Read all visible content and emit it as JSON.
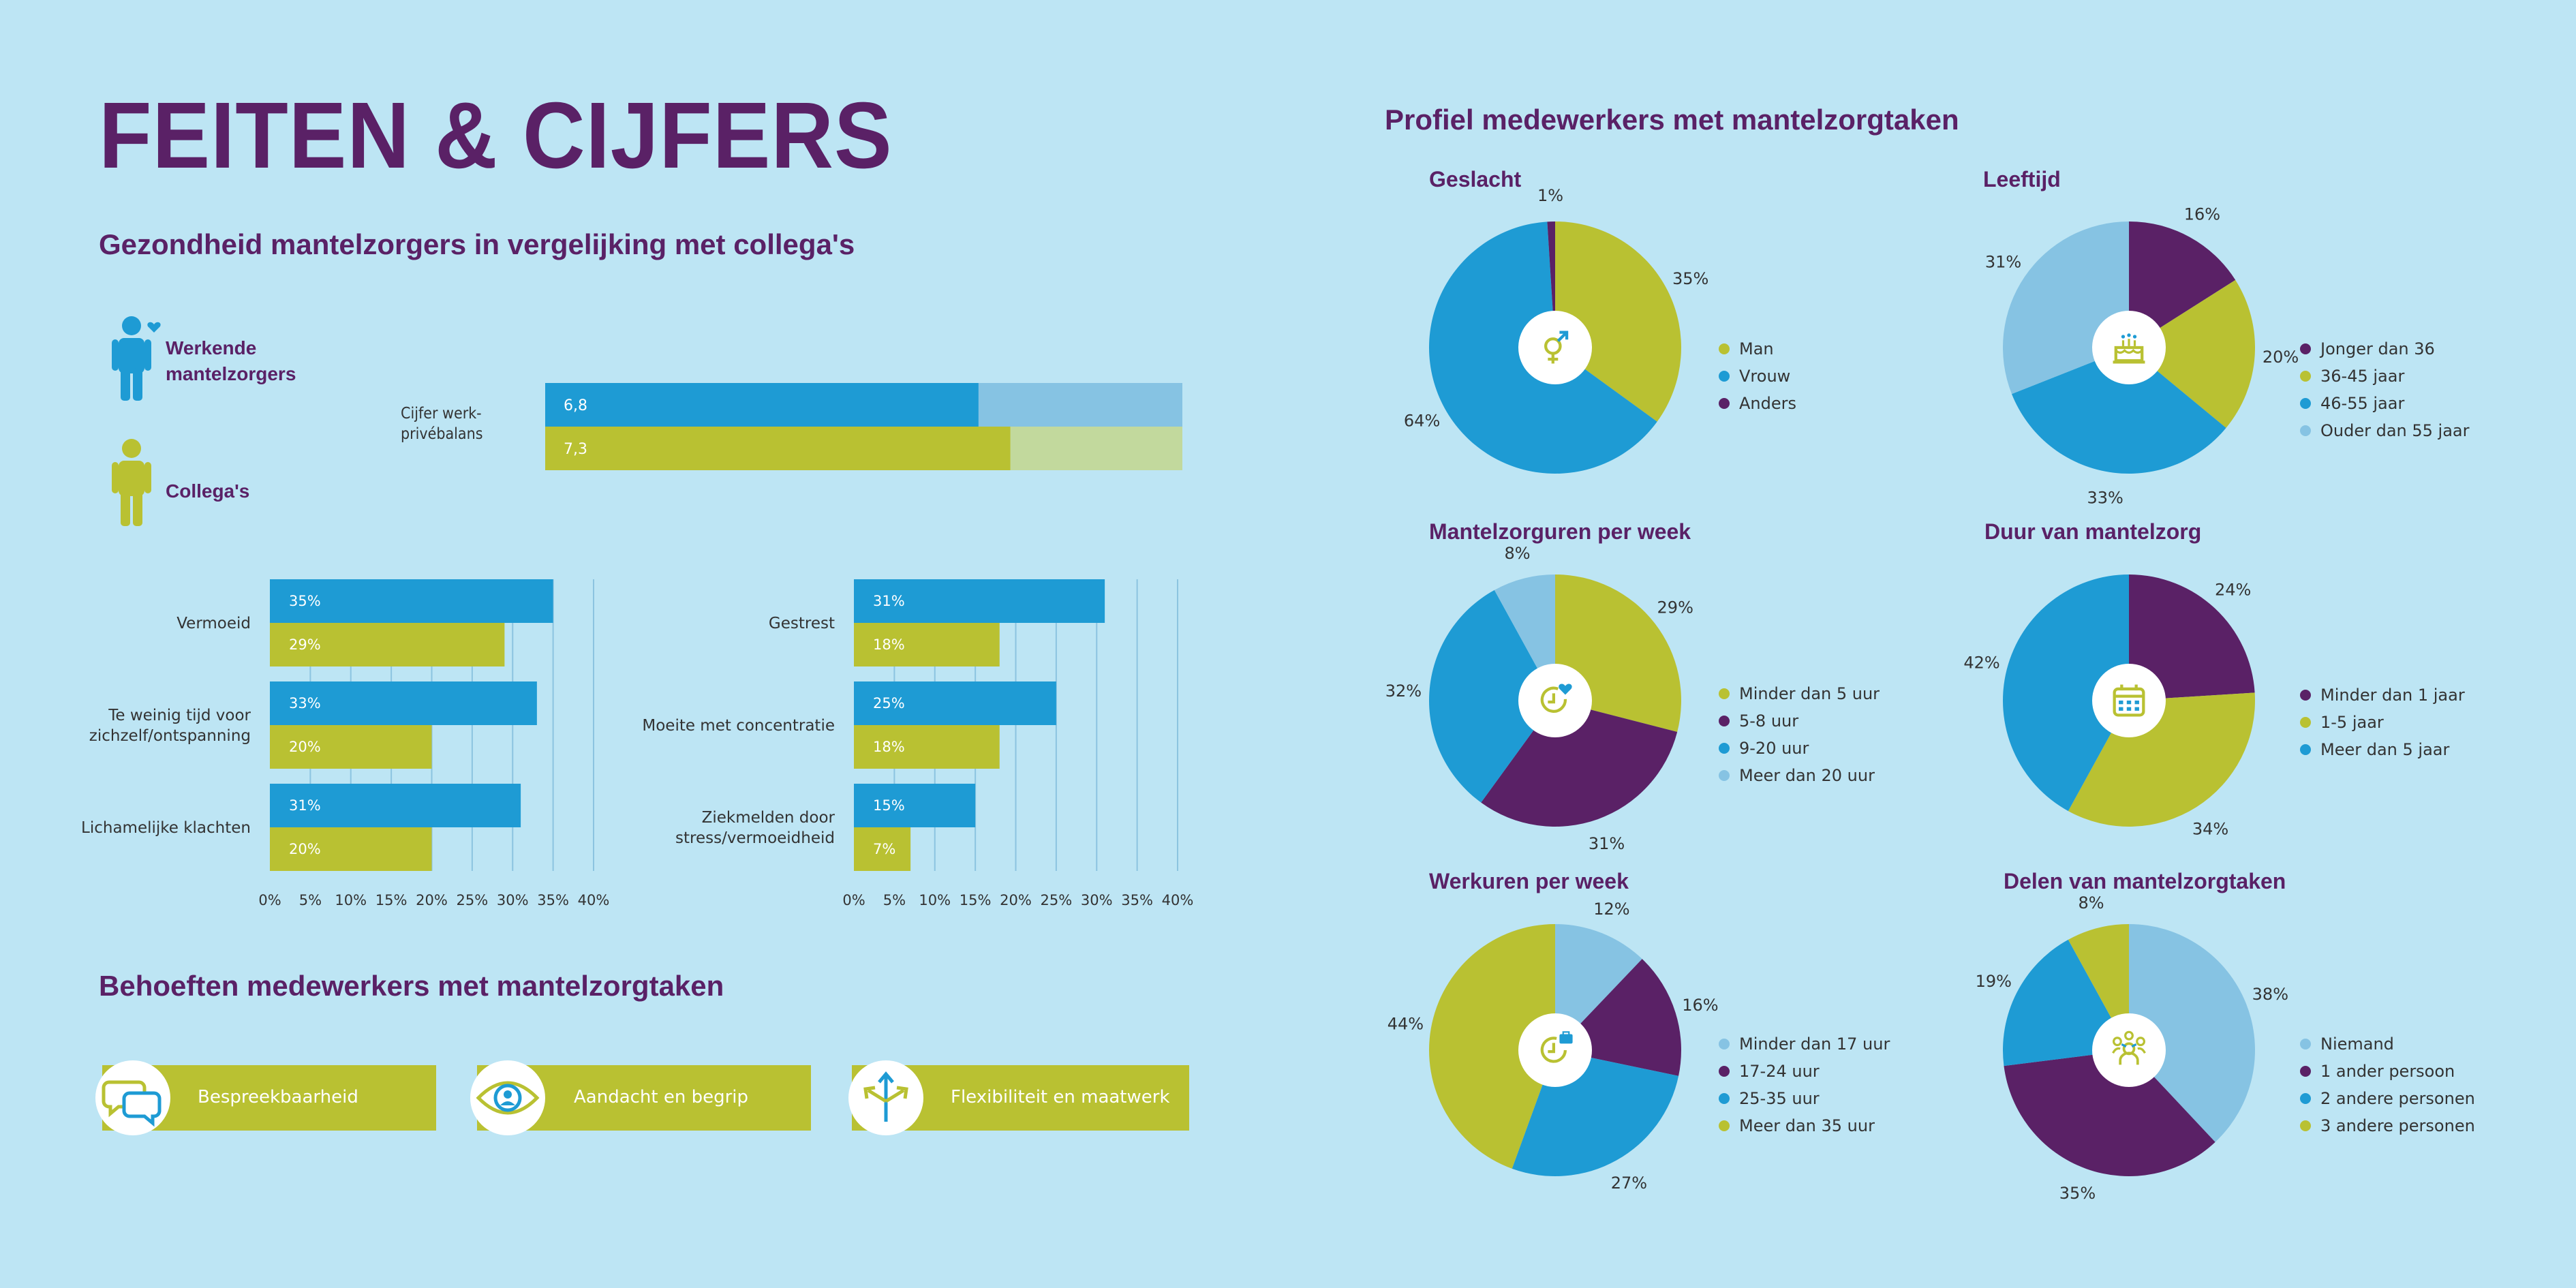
{
  "title": "FEITEN & CIJFERS",
  "left": {
    "health_heading": "Gezondheid mantelzorgers in vergelijking met collega's",
    "persons": [
      {
        "label": "Werkende mantelzorgers",
        "color": "#1e9bd4"
      },
      {
        "label": "Collega's",
        "color": "#b9c132"
      }
    ],
    "balance_label": "Cijfer werk-privébalans",
    "needs_heading": "Behoeften medewerkers met mantelzorgtaken",
    "needs": [
      {
        "label": "Bespreekbaarheid",
        "icon": "speech-bubbles-icon"
      },
      {
        "label": "Aandacht en begrip",
        "icon": "eye-icon"
      },
      {
        "label": "Flexibiliteit en maatwerk",
        "icon": "branching-arrows-icon"
      }
    ]
  },
  "right": {
    "heading": "Profiel medewerkers met mantelzorgtaken"
  },
  "colors": {
    "purple": "#5a2166",
    "blue": "#1e9bd4",
    "green": "#b9c132",
    "lightblue": "#86c3e3",
    "lightgreen": "#c2d99d",
    "background": "#bde5f4"
  },
  "chart_data": [
    {
      "id": "balance",
      "type": "bar",
      "categories": [
        "Cijfer werk-privébalans"
      ],
      "series": [
        {
          "name": "Werkende mantelzorgers",
          "values": [
            6.8
          ],
          "labels": [
            "6,8"
          ]
        },
        {
          "name": "Collega's",
          "values": [
            7.3
          ],
          "labels": [
            "7,3"
          ]
        }
      ],
      "xlim": [
        0,
        10
      ]
    },
    {
      "id": "health1",
      "type": "bar",
      "categories": [
        "Vermoeid",
        "Te weinig tijd voor zichzelf/ontspanning",
        "Lichamelijke klachten"
      ],
      "category_lines": [
        [
          "Vermoeid"
        ],
        [
          "Te weinig tijd voor",
          "zichzelf/ontspanning"
        ],
        [
          "Lichamelijke klachten"
        ]
      ],
      "series": [
        {
          "name": "Werkende mantelzorgers",
          "values": [
            35,
            33,
            31
          ]
        },
        {
          "name": "Collega's",
          "values": [
            29,
            20,
            20
          ]
        }
      ],
      "xlim": [
        0,
        40
      ],
      "ticks": [
        "0%",
        "5%",
        "10%",
        "15%",
        "20%",
        "25%",
        "30%",
        "35%",
        "40%"
      ],
      "grid": true
    },
    {
      "id": "health2",
      "type": "bar",
      "categories": [
        "Gestrest",
        "Moeite met concentratie",
        "Ziekmelden door stress/vermoeidheid"
      ],
      "category_lines": [
        [
          "Gestrest"
        ],
        [
          "Moeite met concentratie"
        ],
        [
          "Ziekmelden door",
          "stress/vermoeidheid"
        ]
      ],
      "series": [
        {
          "name": "Werkende mantelzorgers",
          "values": [
            31,
            25,
            15
          ]
        },
        {
          "name": "Collega's",
          "values": [
            18,
            18,
            7
          ]
        }
      ],
      "xlim": [
        0,
        40
      ],
      "ticks": [
        "0%",
        "5%",
        "10%",
        "15%",
        "20%",
        "25%",
        "30%",
        "35%",
        "40%"
      ],
      "grid": true
    },
    {
      "id": "geslacht",
      "type": "pie",
      "title": "Geslacht",
      "icon": "gender-icon",
      "slices": [
        {
          "label": "Man",
          "value": 35,
          "color": "#b9c132"
        },
        {
          "label": "Vrouw",
          "value": 64,
          "color": "#1e9bd4"
        },
        {
          "label": "Anders",
          "value": 1,
          "color": "#5a2166"
        }
      ]
    },
    {
      "id": "leeftijd",
      "type": "pie",
      "title": "Leeftijd",
      "icon": "birthday-cake-icon",
      "slices": [
        {
          "label": "Jonger dan 36",
          "value": 16,
          "color": "#5a2166"
        },
        {
          "label": "36-45 jaar",
          "value": 20,
          "color": "#b9c132"
        },
        {
          "label": "46-55 jaar",
          "value": 33,
          "color": "#1e9bd4"
        },
        {
          "label": "Ouder dan 55 jaar",
          "value": 31,
          "color": "#86c3e3"
        }
      ]
    },
    {
      "id": "mantelzorguren",
      "type": "pie",
      "title": "Mantelzorguren per week",
      "icon": "clock-heart-icon",
      "slices": [
        {
          "label": "Minder dan 5 uur",
          "value": 29,
          "color": "#b9c132"
        },
        {
          "label": "5-8 uur",
          "value": 31,
          "color": "#5a2166"
        },
        {
          "label": "9-20 uur",
          "value": 32,
          "color": "#1e9bd4"
        },
        {
          "label": "Meer dan 20 uur",
          "value": 8,
          "color": "#86c3e3"
        }
      ]
    },
    {
      "id": "duur",
      "type": "pie",
      "title": "Duur van mantelzorg",
      "icon": "calendar-icon",
      "slices": [
        {
          "label": "Minder dan 1 jaar",
          "value": 24,
          "color": "#5a2166"
        },
        {
          "label": "1-5 jaar",
          "value": 34,
          "color": "#b9c132"
        },
        {
          "label": "Meer dan 5 jaar",
          "value": 42,
          "color": "#1e9bd4"
        }
      ]
    },
    {
      "id": "werkuren",
      "type": "pie",
      "title": "Werkuren per week",
      "icon": "clock-briefcase-icon",
      "slices": [
        {
          "label": "Minder dan 17 uur",
          "value": 12,
          "color": "#86c3e3"
        },
        {
          "label": "17-24 uur",
          "value": 16,
          "color": "#5a2166"
        },
        {
          "label": "25-35 uur",
          "value": 27,
          "color": "#1e9bd4"
        },
        {
          "label": "Meer dan 35 uur",
          "value": 44,
          "color": "#b9c132"
        }
      ]
    },
    {
      "id": "delen",
      "type": "pie",
      "title": "Delen van mantelzorgtaken",
      "icon": "group-icon",
      "slices": [
        {
          "label": "Niemand",
          "value": 38,
          "color": "#86c3e3"
        },
        {
          "label": "1 ander persoon",
          "value": 35,
          "color": "#5a2166"
        },
        {
          "label": "2 andere personen",
          "value": 19,
          "color": "#1e9bd4"
        },
        {
          "label": "3 andere personen",
          "value": 8,
          "color": "#b9c132"
        }
      ]
    }
  ]
}
